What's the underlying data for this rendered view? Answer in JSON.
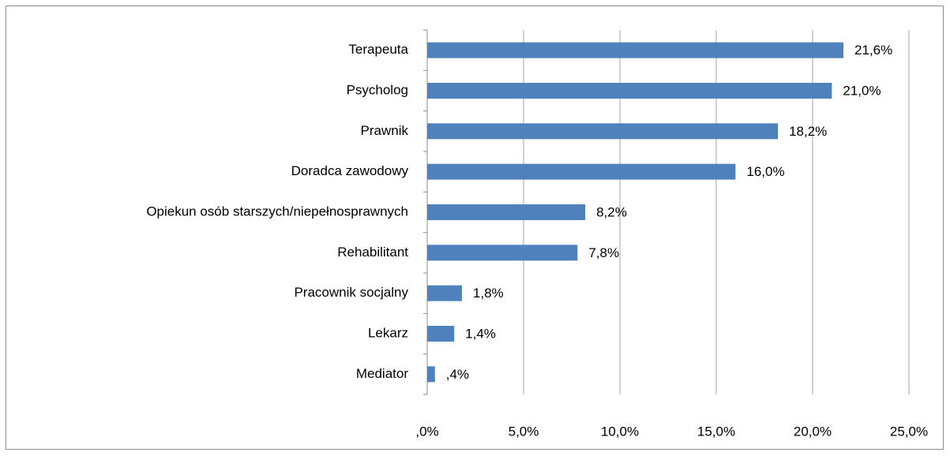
{
  "chart_data": {
    "type": "barh",
    "categories": [
      "Terapeuta",
      "Psycholog",
      "Prawnik",
      "Doradca zawodowy",
      "Opiekun osób starszych/niepełnosprawnych",
      "Rehabilitant",
      "Pracownik socjalny",
      "Lekarz",
      "Mediator"
    ],
    "values": [
      21.6,
      21.0,
      18.2,
      16.0,
      8.2,
      7.8,
      1.8,
      1.4,
      0.4
    ],
    "value_labels": [
      "21,6%",
      "21,0%",
      "18,2%",
      "16,0%",
      "8,2%",
      "7,8%",
      "1,8%",
      "1,4%",
      ",4%"
    ],
    "color": "#4f81bd",
    "xlim": [
      0,
      25
    ],
    "xticks": [
      {
        "value": 0,
        "label": ",0%"
      },
      {
        "value": 5,
        "label": "5,0%"
      },
      {
        "value": 10,
        "label": "10,0%"
      },
      {
        "value": 15,
        "label": "15,0%"
      },
      {
        "value": 20,
        "label": "20,0%"
      },
      {
        "value": 25,
        "label": "25,0%"
      }
    ],
    "grid": true
  }
}
